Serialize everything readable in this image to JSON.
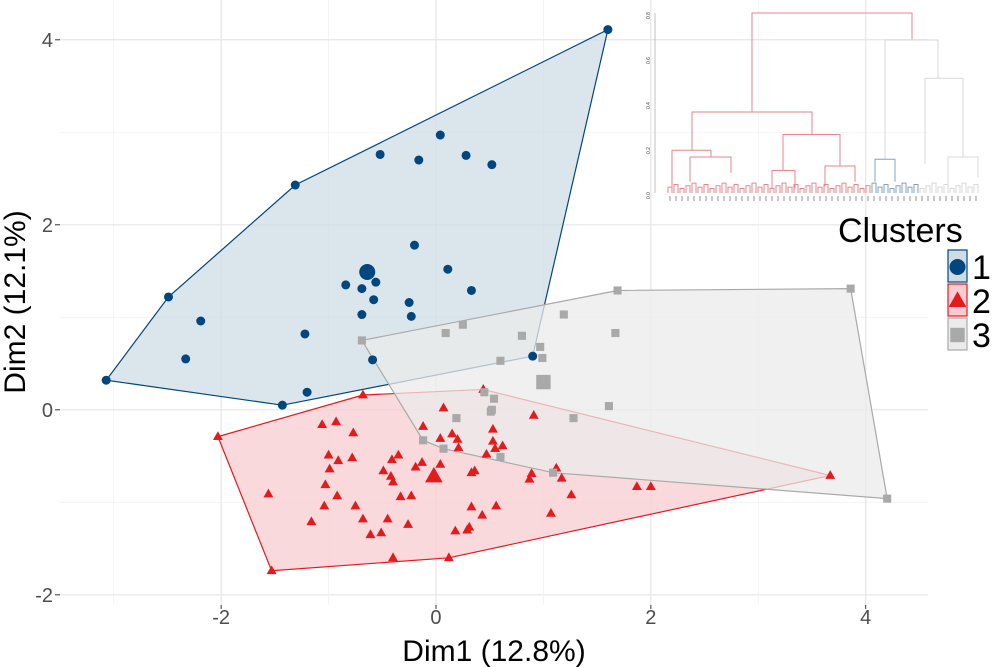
{
  "chart_data": {
    "type": "scatter",
    "xlabel": "Dim1 (12.8%)",
    "ylabel": "Dim2 (12.1%)",
    "xlim": [
      -3.5,
      4.58
    ],
    "ylim": [
      -2.11,
      4.43
    ],
    "xticks": [
      -2,
      0,
      2,
      4
    ],
    "yticks": [
      -2,
      0,
      2,
      4
    ],
    "grid": true,
    "legend": {
      "title": "Clusters",
      "position": "right"
    },
    "series": [
      {
        "name": "1",
        "color": "#00467F",
        "fill": "#CFDCE6",
        "shape": "circle",
        "centroid": [
          -0.64,
          1.49
        ],
        "points": [
          [
            1.6,
            4.11
          ],
          [
            -1.31,
            2.43
          ],
          [
            -3.07,
            0.32
          ],
          [
            -1.43,
            0.05
          ],
          [
            0.9,
            0.58
          ],
          [
            0.04,
            2.97
          ],
          [
            -0.52,
            2.76
          ],
          [
            -0.16,
            2.7
          ],
          [
            0.28,
            2.75
          ],
          [
            0.52,
            2.65
          ],
          [
            -0.2,
            1.78
          ],
          [
            0.11,
            1.52
          ],
          [
            -0.56,
            1.38
          ],
          [
            -0.84,
            1.35
          ],
          [
            -0.69,
            1.31
          ],
          [
            -0.58,
            1.19
          ],
          [
            -0.25,
            1.16
          ],
          [
            -0.69,
            1.03
          ],
          [
            -0.23,
            1.01
          ],
          [
            0.33,
            1.29
          ],
          [
            -1.22,
            0.82
          ],
          [
            -2.19,
            0.96
          ],
          [
            -2.33,
            0.55
          ],
          [
            -0.59,
            0.54
          ],
          [
            -1.2,
            0.19
          ],
          [
            -2.49,
            1.22
          ]
        ]
      },
      {
        "name": "2",
        "color": "#E41A1C",
        "fill": "#F8CCD0",
        "shape": "triangle",
        "centroid": [
          -0.02,
          -0.72
        ],
        "points": [
          [
            -2.03,
            -0.29
          ],
          [
            -0.68,
            0.16
          ],
          [
            0.44,
            0.22
          ],
          [
            -1.53,
            -1.74
          ],
          [
            -0.4,
            -1.6
          ],
          [
            0.12,
            -1.6
          ],
          [
            3.67,
            -0.71
          ],
          [
            -1.06,
            -0.16
          ],
          [
            -0.93,
            -0.13
          ],
          [
            -0.77,
            -0.25
          ],
          [
            0.07,
            0.02
          ],
          [
            0.91,
            -0.06
          ],
          [
            -0.12,
            -0.18
          ],
          [
            0.53,
            -0.21
          ],
          [
            0.04,
            -0.31
          ],
          [
            0.15,
            -0.26
          ],
          [
            0.2,
            -0.32
          ],
          [
            0.21,
            -0.41
          ],
          [
            0.53,
            -0.34
          ],
          [
            0.62,
            -0.39
          ],
          [
            0.55,
            -0.42
          ],
          [
            0.47,
            -0.48
          ],
          [
            -1.0,
            -0.49
          ],
          [
            -0.91,
            -0.55
          ],
          [
            -0.78,
            -0.52
          ],
          [
            -0.35,
            -0.49
          ],
          [
            -0.41,
            -0.54
          ],
          [
            -0.99,
            -0.64
          ],
          [
            -0.49,
            -0.66
          ],
          [
            -0.42,
            -0.72
          ],
          [
            -0.4,
            -0.78
          ],
          [
            -0.19,
            -0.62
          ],
          [
            -0.13,
            -0.57
          ],
          [
            0.04,
            -0.59
          ],
          [
            0.33,
            -0.68
          ],
          [
            0.36,
            -0.66
          ],
          [
            0.89,
            -0.69
          ],
          [
            0.87,
            -0.75
          ],
          [
            1.12,
            -0.63
          ],
          [
            1.17,
            -0.74
          ],
          [
            1.26,
            -0.92
          ],
          [
            1.87,
            -0.83
          ],
          [
            2.0,
            -0.83
          ],
          [
            -1.56,
            -0.91
          ],
          [
            -1.03,
            -0.81
          ],
          [
            -0.92,
            -0.93
          ],
          [
            -0.33,
            -0.94
          ],
          [
            -0.23,
            -0.93
          ],
          [
            -1.04,
            -1.04
          ],
          [
            -0.75,
            -1.04
          ],
          [
            0.33,
            -1.05
          ],
          [
            0.56,
            -1.04
          ],
          [
            0.43,
            -1.14
          ],
          [
            1.07,
            -1.12
          ],
          [
            -1.16,
            -1.21
          ],
          [
            -0.68,
            -1.18
          ],
          [
            -0.45,
            -1.18
          ],
          [
            -0.26,
            -1.24
          ],
          [
            -0.61,
            -1.35
          ],
          [
            -0.51,
            -1.33
          ],
          [
            0.18,
            -1.31
          ],
          [
            0.31,
            -1.27
          ],
          [
            0.29,
            -1.3
          ]
        ]
      },
      {
        "name": "3",
        "color": "#A9A9A9",
        "fill": "#EBEBEB",
        "shape": "square",
        "centroid": [
          1.0,
          0.3
        ],
        "points": [
          [
            1.69,
            1.29
          ],
          [
            3.86,
            1.31
          ],
          [
            1.19,
            1.03
          ],
          [
            0.8,
            0.8
          ],
          [
            1.67,
            0.83
          ],
          [
            0.97,
            0.68
          ],
          [
            0.99,
            0.56
          ],
          [
            0.6,
            0.53
          ],
          [
            1.61,
            0.04
          ],
          [
            1.28,
            -0.09
          ],
          [
            4.2,
            -0.96
          ],
          [
            0.54,
            0.12
          ],
          [
            0.51,
            -0.02
          ],
          [
            0.6,
            -0.51
          ],
          [
            1.09,
            -0.68
          ],
          [
            0.45,
            0.19
          ],
          [
            -0.69,
            0.75
          ],
          [
            0.09,
            0.83
          ],
          [
            0.25,
            0.92
          ],
          [
            -0.12,
            -0.33
          ],
          [
            0.07,
            -0.42
          ],
          [
            0.19,
            -0.09
          ],
          [
            0.52,
            0.0
          ]
        ]
      }
    ]
  },
  "dendrogram": {
    "yticks": [
      "0.0",
      "0.2",
      "0.4",
      "0.6",
      "0.8"
    ],
    "colors": [
      "#E8868A",
      "#7FA3C4",
      "#D9D9D9"
    ]
  }
}
